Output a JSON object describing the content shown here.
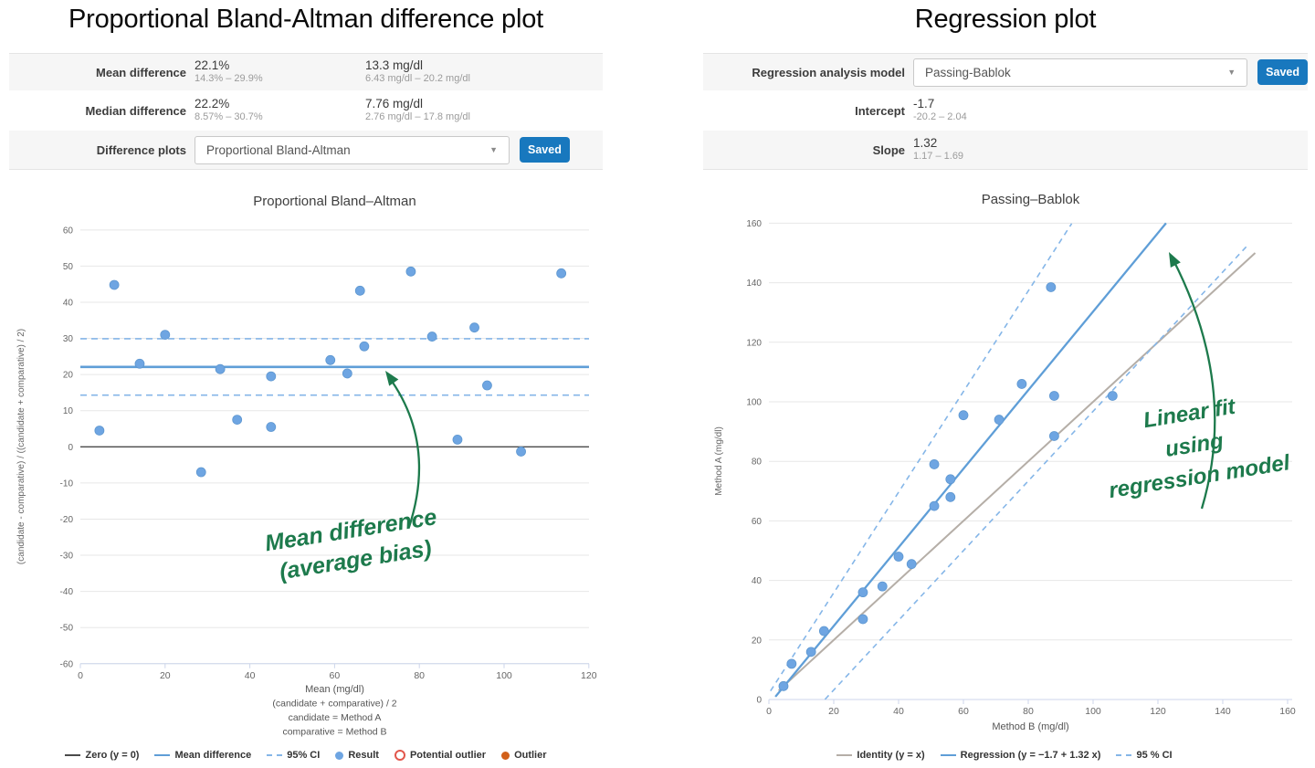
{
  "colors": {
    "accent_blue": "#1878be",
    "point_fill": "#6ea5e2",
    "point_stroke": "#5e97d0",
    "mean_line": "#5f9ed7",
    "ci_dash": "#85b6e8",
    "zero_line": "#4a4a4a",
    "identity_line": "#b5aea7",
    "annotation_green": "#1d7a4c",
    "outlier_fill": "#d2601a",
    "potential_outlier_stroke": "#e2574c",
    "grid": "#e7e7e7",
    "axis_line": "#ccd6eb",
    "tick_text": "#666666",
    "chart_title": "#3f3f3f"
  },
  "left_panel": {
    "title": "Proportional Bland-Altman difference plot",
    "stats": [
      {
        "label": "Mean difference",
        "value_pct": "22.1%",
        "ci_pct": "14.3% – 29.9%",
        "value_abs": "13.3 mg/dl",
        "ci_abs": "6.43 mg/dl – 20.2 mg/dl"
      },
      {
        "label": "Median difference",
        "value_pct": "22.2%",
        "ci_pct": "8.57% – 30.7%",
        "value_abs": "7.76 mg/dl",
        "ci_abs": "2.76 mg/dl – 17.8 mg/dl"
      }
    ],
    "selector": {
      "label": "Difference plots",
      "value": "Proportional Bland-Altman",
      "button": "Saved"
    }
  },
  "right_panel": {
    "title": "Regression plot",
    "selector": {
      "label": "Regression analysis model",
      "value": "Passing-Bablok",
      "button": "Saved"
    },
    "stats": [
      {
        "label": "Intercept",
        "value": "-1.7",
        "ci": "-20.2 – 2.04"
      },
      {
        "label": "Slope",
        "value": "1.32",
        "ci": "1.17 – 1.69"
      }
    ]
  },
  "chart_data": [
    {
      "type": "scatter",
      "title": "Proportional Bland–Altman",
      "xlabel_lines": [
        "Mean (mg/dl)",
        "(candidate + comparative) / 2",
        "candidate = Method A",
        "comparative = Method B"
      ],
      "ylabel": "(candidate - comparative) / ((candidate + comparative) / 2)",
      "xlim": [
        0,
        120
      ],
      "ylim": [
        -60,
        60
      ],
      "xticks": [
        0,
        20,
        40,
        60,
        80,
        100,
        120
      ],
      "yticks": [
        -60,
        -50,
        -40,
        -30,
        -20,
        -10,
        0,
        10,
        20,
        30,
        40,
        50,
        60
      ],
      "grid": true,
      "reference_lines": {
        "zero": 0,
        "mean": 22.1,
        "ci_lower": 14.3,
        "ci_upper": 29.9
      },
      "points": [
        [
          4.5,
          4.5
        ],
        [
          8,
          44.8
        ],
        [
          14,
          23
        ],
        [
          20,
          31
        ],
        [
          28.5,
          -7
        ],
        [
          33,
          21.5
        ],
        [
          37,
          7.5
        ],
        [
          45,
          19.5
        ],
        [
          45,
          5.5
        ],
        [
          59,
          24
        ],
        [
          63,
          20.3
        ],
        [
          66,
          43.2
        ],
        [
          67,
          27.8
        ],
        [
          78,
          48.5
        ],
        [
          83,
          30.5
        ],
        [
          89,
          2
        ],
        [
          93,
          33
        ],
        [
          96,
          17
        ],
        [
          104,
          -1.3
        ],
        [
          113.5,
          48
        ]
      ],
      "legend": [
        {
          "shape": "line",
          "color": "#4a4a4a",
          "label": "Zero (y = 0)"
        },
        {
          "shape": "line",
          "color": "#5f9ed7",
          "label": "Mean difference"
        },
        {
          "shape": "dash",
          "color": "#85b6e8",
          "label": "95% CI"
        },
        {
          "shape": "dot",
          "color": "#6ea5e2",
          "label": "Result"
        },
        {
          "shape": "ring",
          "color": "#e2574c",
          "label": "Potential outlier"
        },
        {
          "shape": "dot",
          "color": "#d2601a",
          "label": "Outlier"
        }
      ],
      "annotation": {
        "lines": [
          "Mean difference",
          "(average bias)"
        ]
      }
    },
    {
      "type": "scatter",
      "title": "Passing–Bablok",
      "xlabel": "Method B (mg/dl)",
      "ylabel": "Method A (mg/dl)",
      "xlim": [
        0,
        160
      ],
      "ylim": [
        0,
        160
      ],
      "xticks": [
        0,
        20,
        40,
        60,
        80,
        100,
        120,
        140,
        160
      ],
      "yticks": [
        0,
        20,
        40,
        60,
        80,
        100,
        120,
        140,
        160
      ],
      "grid": true,
      "lines": {
        "identity": {
          "slope": 1,
          "intercept": 0,
          "x_range": [
            3,
            150
          ]
        },
        "regression": {
          "slope": 1.32,
          "intercept": -1.7,
          "x_range": [
            2,
            122.5
          ]
        },
        "ci_upper": {
          "slope": 1.69,
          "intercept": 2.04,
          "x_range": [
            0.5,
            93.4
          ]
        },
        "ci_lower": {
          "slope": 1.17,
          "intercept": -20.2,
          "x_range": [
            17.3,
            148
          ]
        }
      },
      "points": [
        [
          4.5,
          4.5
        ],
        [
          7,
          12
        ],
        [
          13,
          16
        ],
        [
          17,
          23
        ],
        [
          29,
          27
        ],
        [
          29,
          36
        ],
        [
          35,
          38
        ],
        [
          40,
          48
        ],
        [
          44,
          45.5
        ],
        [
          51,
          65
        ],
        [
          51,
          79
        ],
        [
          56,
          74
        ],
        [
          56,
          68
        ],
        [
          60,
          95.5
        ],
        [
          71,
          94
        ],
        [
          78,
          106
        ],
        [
          87,
          138.5
        ],
        [
          88,
          102
        ],
        [
          88,
          88.5
        ],
        [
          106,
          102
        ]
      ],
      "legend": [
        {
          "shape": "line",
          "color": "#b5aea7",
          "label": "Identity (y = x)"
        },
        {
          "shape": "line",
          "color": "#5f9ed7",
          "label": "Regression (y = −1.7 + 1.32 x)"
        },
        {
          "shape": "dash",
          "color": "#85b6e8",
          "label": "95 % CI"
        }
      ],
      "annotation": {
        "lines": [
          "Linear fit",
          "using",
          "regression model"
        ]
      }
    }
  ]
}
